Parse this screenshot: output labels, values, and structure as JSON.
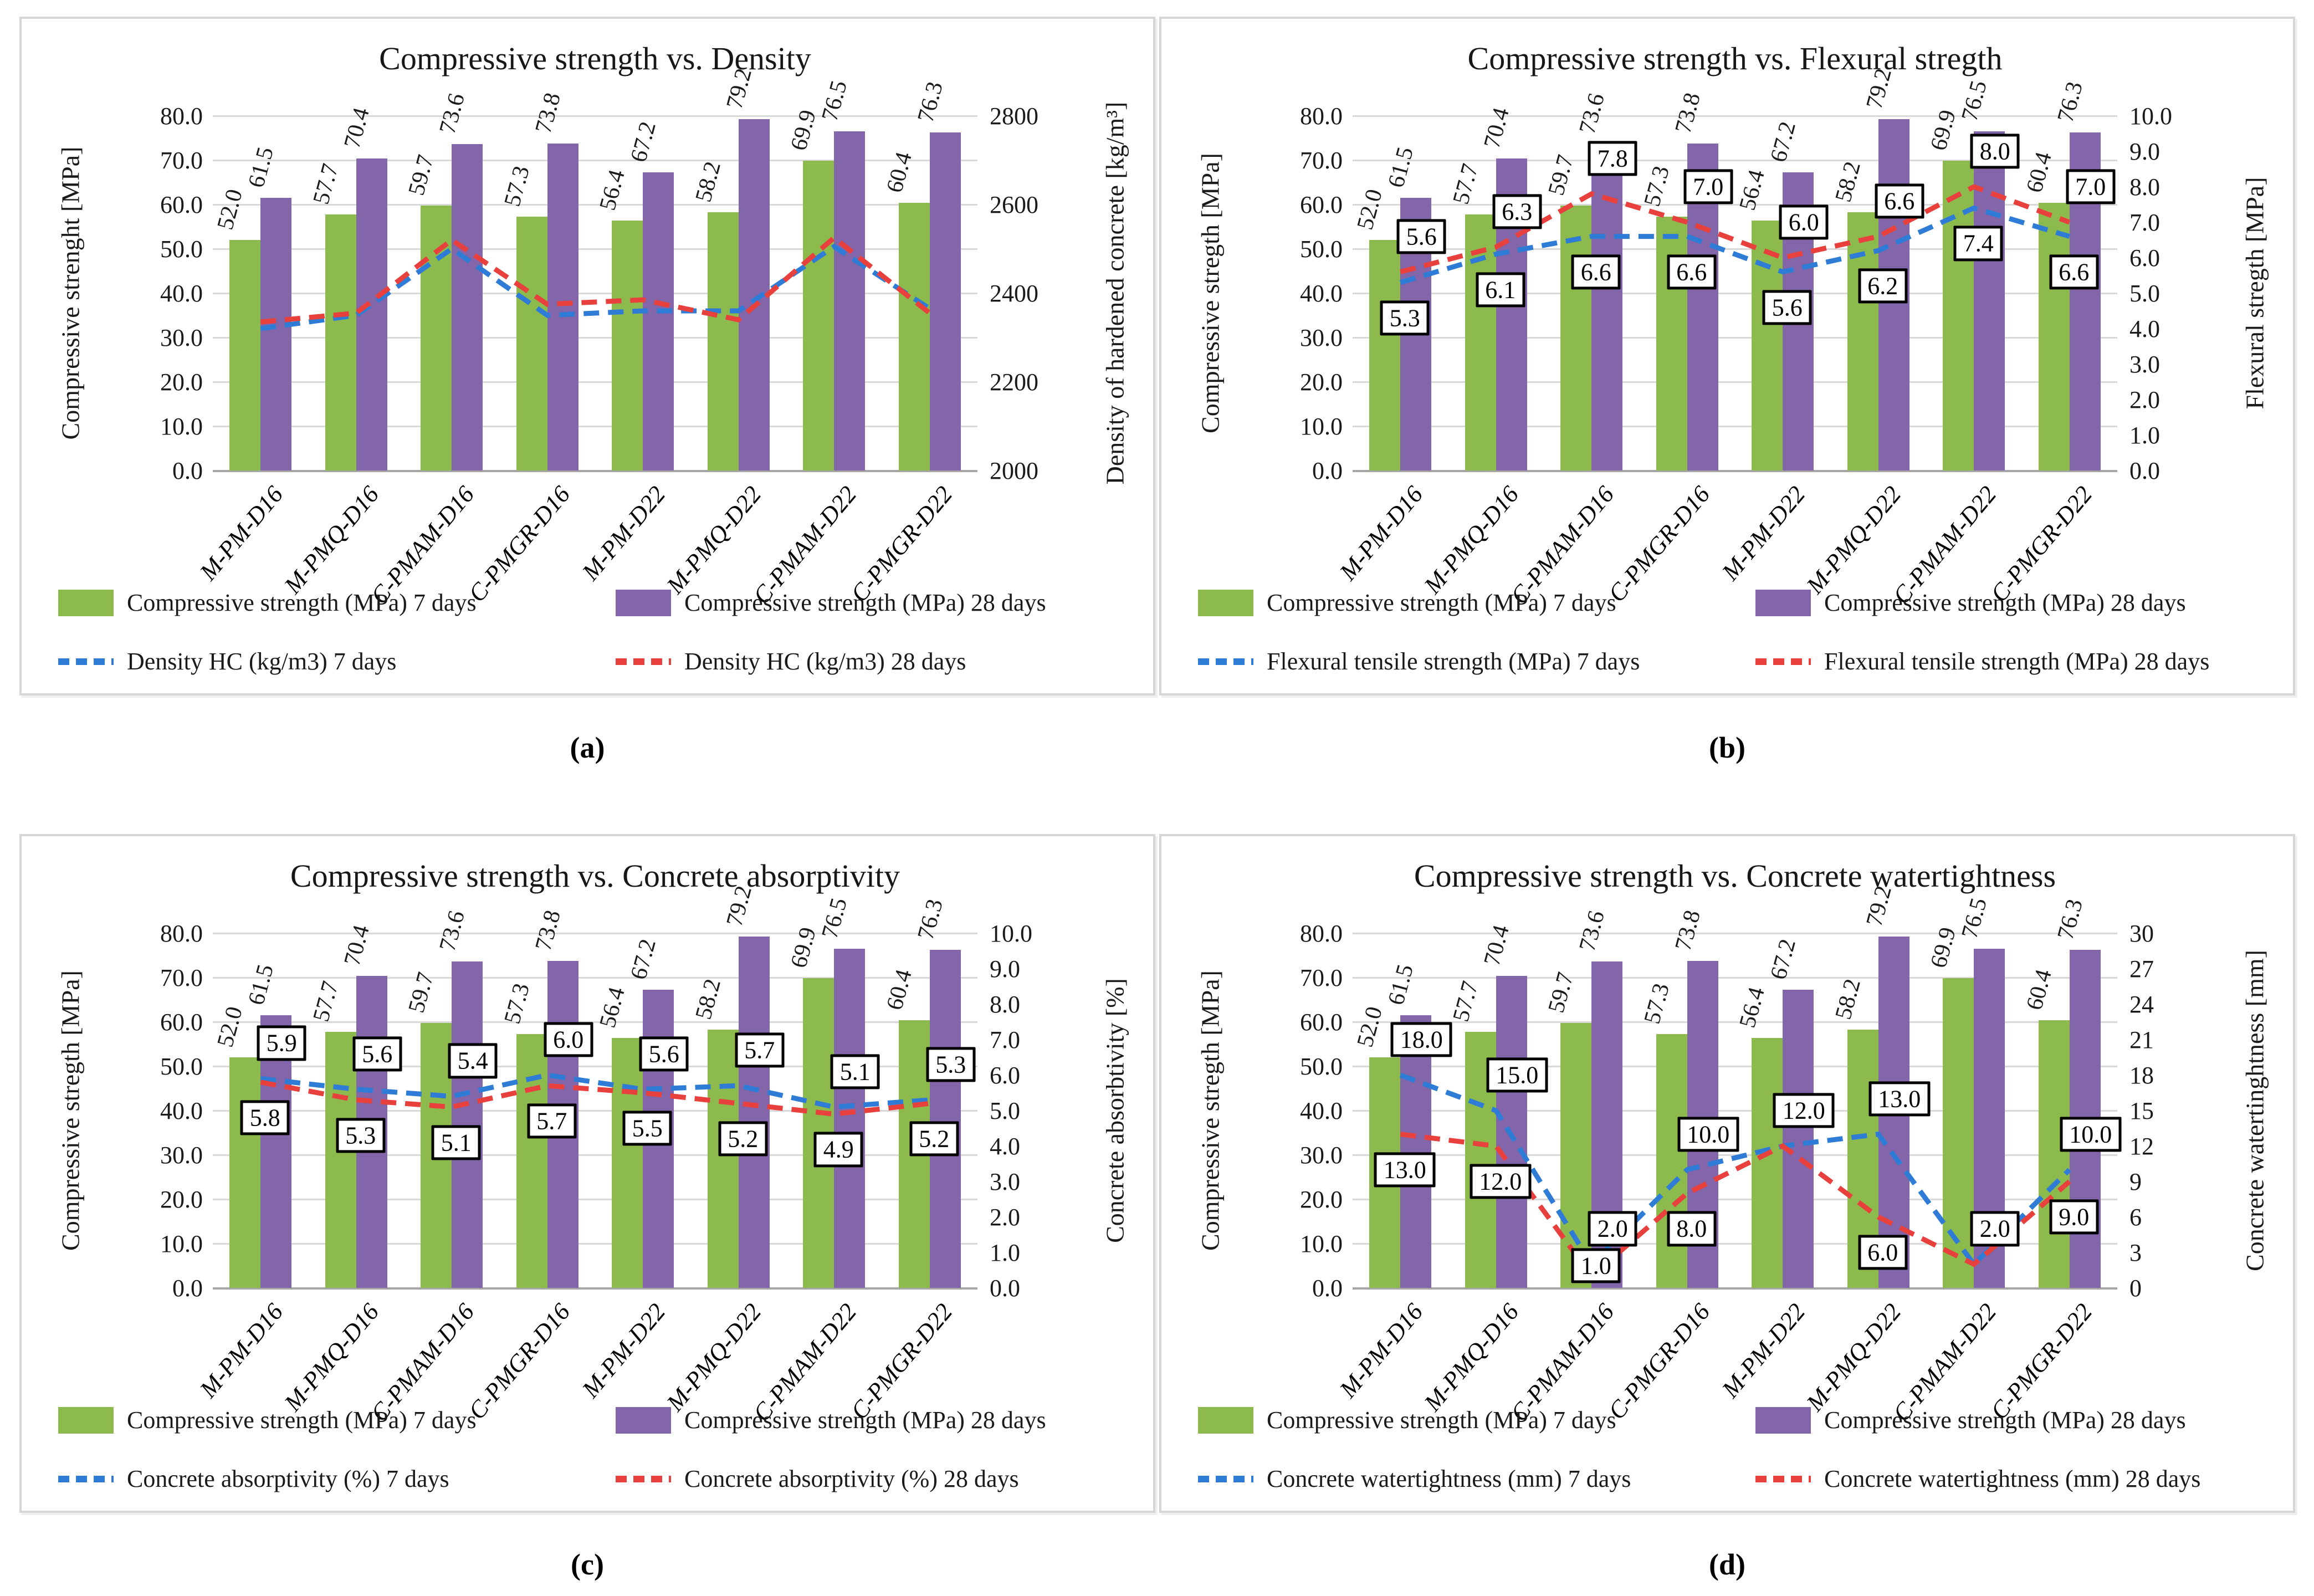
{
  "colors": {
    "bar7": "#8cba4d",
    "bar28": "#8365a9",
    "line7": "#2e7cd6",
    "line28": "#e8403d",
    "gridline": "#d9d9d9",
    "axis_line": "#a6a6a6",
    "text": "#1a1a1a",
    "label_box_border": "#000000",
    "label_box_fill": "#ffffff"
  },
  "chart_data": [
    {
      "id": "a",
      "type": "bar+line",
      "caption": "(a)",
      "title": "Compressive strength vs. Density",
      "categories": [
        "M-PM-D16",
        "M-PMQ-D16",
        "C-PMAM-D16",
        "C-PMGR-D16",
        "M-PM-D22",
        "M-PMQ-D22",
        "C-PMAM-D22",
        "C-PMGR-D22"
      ],
      "y_left": {
        "label": "Compressive strenght [MPa]",
        "min": 0,
        "max": 80,
        "tick_values": [
          80,
          70,
          60,
          50,
          40,
          30,
          20,
          10,
          0
        ],
        "tick_labels": [
          "80.0",
          "70.0",
          "60.0",
          "50.0",
          "40.0",
          "30.0",
          "20.0",
          "10.0",
          "0.0"
        ]
      },
      "y_right": {
        "label": "Density of hardened concrete [kg/m³]",
        "min": 2000,
        "max": 2800,
        "tick_values": [
          2800,
          2600,
          2400,
          2200,
          2000
        ],
        "tick_labels": [
          "2800",
          "2600",
          "2400",
          "2200",
          "2000"
        ]
      },
      "bars": [
        {
          "name": "Compressive strength (MPa) 7 days",
          "color": "bar7",
          "values": [
            52.0,
            57.7,
            59.7,
            57.3,
            56.4,
            58.2,
            69.9,
            60.4
          ]
        },
        {
          "name": "Compressive strength (MPa) 28 days",
          "color": "bar28",
          "values": [
            61.5,
            70.4,
            73.6,
            73.8,
            67.2,
            79.2,
            76.5,
            76.3
          ]
        }
      ],
      "lines": [
        {
          "name": "Density HC (kg/m3) 7 days",
          "color": "line7",
          "values": [
            2320,
            2350,
            2500,
            2350,
            2360,
            2360,
            2505,
            2365
          ]
        },
        {
          "name": "Density HC (kg/m3) 28 days",
          "color": "line28",
          "values": [
            2335,
            2355,
            2520,
            2375,
            2385,
            2340,
            2525,
            2355
          ]
        }
      ]
    },
    {
      "id": "b",
      "type": "bar+line",
      "caption": "(b)",
      "title": "Compressive strength vs. Flexural stregth",
      "categories": [
        "M-PM-D16",
        "M-PMQ-D16",
        "C-PMAM-D16",
        "C-PMGR-D16",
        "M-PM-D22",
        "M-PMQ-D22",
        "C-PMAM-D22",
        "C-PMGR-D22"
      ],
      "y_left": {
        "label": "Compressive stregth [MPa]",
        "min": 0,
        "max": 80,
        "tick_values": [
          80,
          70,
          60,
          50,
          40,
          30,
          20,
          10,
          0
        ],
        "tick_labels": [
          "80.0",
          "70.0",
          "60.0",
          "50.0",
          "40.0",
          "30.0",
          "20.0",
          "10.0",
          "0.0"
        ]
      },
      "y_right": {
        "label": "Flexural stregth [MPa]",
        "min": 0,
        "max": 10,
        "tick_values": [
          10,
          9,
          8,
          7,
          6,
          5,
          4,
          3,
          2,
          1,
          0
        ],
        "tick_labels": [
          "10.0",
          "9.0",
          "8.0",
          "7.0",
          "6.0",
          "5.0",
          "4.0",
          "3.0",
          "2.0",
          "1.0",
          "0.0"
        ]
      },
      "bars": [
        {
          "name": "Compressive strength (MPa) 7 days",
          "color": "bar7",
          "values": [
            52.0,
            57.7,
            59.7,
            57.3,
            56.4,
            58.2,
            69.9,
            60.4
          ]
        },
        {
          "name": "Compressive strength (MPa) 28 days",
          "color": "bar28",
          "values": [
            61.5,
            70.4,
            73.6,
            73.8,
            67.2,
            79.2,
            76.5,
            76.3
          ]
        }
      ],
      "lines": [
        {
          "name": "Flexural tensile strength (MPa) 7 days",
          "color": "line7",
          "values": [
            5.3,
            6.1,
            6.6,
            6.6,
            5.6,
            6.2,
            7.4,
            6.6
          ],
          "labels": [
            "5.3",
            "6.1",
            "6.6",
            "6.6",
            "5.6",
            "6.2",
            "7.4",
            "6.6"
          ]
        },
        {
          "name": "Flexural tensile strength (MPa) 28 days",
          "color": "line28",
          "values": [
            5.6,
            6.3,
            7.8,
            7.0,
            6.0,
            6.6,
            8.0,
            7.0
          ],
          "labels": [
            "5.6",
            "6.3",
            "7.8",
            "7.0",
            "6.0",
            "6.6",
            "8.0",
            "7.0"
          ]
        }
      ]
    },
    {
      "id": "c",
      "type": "bar+line",
      "caption": "(c)",
      "title": "Compressive strength vs. Concrete absorptivity",
      "categories": [
        "M-PM-D16",
        "M-PMQ-D16",
        "C-PMAM-D16",
        "C-PMGR-D16",
        "M-PM-D22",
        "M-PMQ-D22",
        "C-PMAM-D22",
        "C-PMGR-D22"
      ],
      "y_left": {
        "label": "Compressive stregth [MPa]",
        "min": 0,
        "max": 80,
        "tick_values": [
          80,
          70,
          60,
          50,
          40,
          30,
          20,
          10,
          0
        ],
        "tick_labels": [
          "80.0",
          "70.0",
          "60.0",
          "50.0",
          "40.0",
          "30.0",
          "20.0",
          "10.0",
          "0.0"
        ]
      },
      "y_right": {
        "label": "Concrete absorbtivity [%]",
        "min": 0,
        "max": 10,
        "tick_values": [
          10,
          9,
          8,
          7,
          6,
          5,
          4,
          3,
          2,
          1,
          0
        ],
        "tick_labels": [
          "10.0",
          "9.0",
          "8.0",
          "7.0",
          "6.0",
          "5.0",
          "4.0",
          "3.0",
          "2.0",
          "1.0",
          "0.0"
        ]
      },
      "bars": [
        {
          "name": "Compressive strength (MPa) 7 days",
          "color": "bar7",
          "values": [
            52.0,
            57.7,
            59.7,
            57.3,
            56.4,
            58.2,
            69.9,
            60.4
          ]
        },
        {
          "name": "Compressive strength (MPa) 28 days",
          "color": "bar28",
          "values": [
            61.5,
            70.4,
            73.6,
            73.8,
            67.2,
            79.2,
            76.5,
            76.3
          ]
        }
      ],
      "lines": [
        {
          "name": "Concrete absorptivity (%) 7 days",
          "color": "line7",
          "values": [
            5.9,
            5.6,
            5.4,
            6.0,
            5.6,
            5.7,
            5.1,
            5.3
          ],
          "labels": [
            "5.9",
            "5.6",
            "5.4",
            "6.0",
            "5.6",
            "5.7",
            "5.1",
            "5.3"
          ]
        },
        {
          "name": "Concrete absorptivity (%) 28 days",
          "color": "line28",
          "values": [
            5.8,
            5.3,
            5.1,
            5.7,
            5.5,
            5.2,
            4.9,
            5.2
          ],
          "labels": [
            "5.8",
            "5.3",
            "5.1",
            "5.7",
            "5.5",
            "5.2",
            "4.9",
            "5.2"
          ]
        }
      ]
    },
    {
      "id": "d",
      "type": "bar+line",
      "caption": "(d)",
      "title": "Compressive strength vs. Concrete watertightness",
      "categories": [
        "M-PM-D16",
        "M-PMQ-D16",
        "C-PMAM-D16",
        "C-PMGR-D16",
        "M-PM-D22",
        "M-PMQ-D22",
        "C-PMAM-D22",
        "C-PMGR-D22"
      ],
      "y_left": {
        "label": "Compressive stregth [MPa]",
        "min": 0,
        "max": 80,
        "tick_values": [
          80,
          70,
          60,
          50,
          40,
          30,
          20,
          10,
          0
        ],
        "tick_labels": [
          "80.0",
          "70.0",
          "60.0",
          "50.0",
          "40.0",
          "30.0",
          "20.0",
          "10.0",
          "0.0"
        ]
      },
      "y_right": {
        "label": "Concrete watertinghtness [mm]",
        "min": 0,
        "max": 30,
        "tick_values": [
          30,
          27,
          24,
          21,
          18,
          15,
          12,
          9,
          6,
          3,
          0
        ],
        "tick_labels": [
          "30",
          "27",
          "24",
          "21",
          "18",
          "15",
          "12",
          "9",
          "6",
          "3",
          "0"
        ]
      },
      "bars": [
        {
          "name": "Compressive strength (MPa) 7 days",
          "color": "bar7",
          "values": [
            52.0,
            57.7,
            59.7,
            57.3,
            56.4,
            58.2,
            69.9,
            60.4
          ]
        },
        {
          "name": "Compressive strength (MPa) 28 days",
          "color": "bar28",
          "values": [
            61.5,
            70.4,
            73.6,
            73.8,
            67.2,
            79.2,
            76.5,
            76.3
          ]
        }
      ],
      "lines": [
        {
          "name": "Concrete watertightness (mm) 7 days",
          "color": "line7",
          "values": [
            18,
            15,
            2,
            10,
            12,
            13,
            2,
            10
          ],
          "labels": [
            "18.0",
            "15.0",
            "2.0",
            "10.0",
            "12.0",
            "13.0",
            "2.0",
            "10.0"
          ]
        },
        {
          "name": "Concrete watertightness (mm) 28 days",
          "color": "line28",
          "values": [
            13,
            12,
            1,
            8,
            12,
            6,
            2,
            9
          ],
          "labels": [
            "13.0",
            "12.0",
            "1.0",
            "8.0",
            null,
            "6.0",
            null,
            "9.0"
          ]
        }
      ]
    }
  ]
}
